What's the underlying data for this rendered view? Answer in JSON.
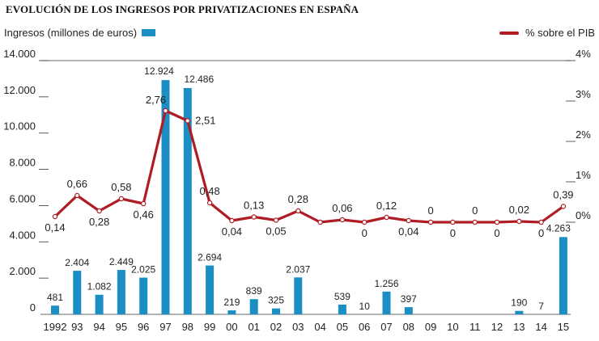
{
  "chart_data": {
    "type": "bar+line",
    "title": "EVOLUCIÓN DE LOS INGRESOS POR PRIVATIZACIONES EN ESPAÑA",
    "categories": [
      "1992",
      "93",
      "94",
      "95",
      "96",
      "97",
      "98",
      "99",
      "00",
      "01",
      "02",
      "03",
      "04",
      "05",
      "06",
      "07",
      "08",
      "09",
      "10",
      "11",
      "12",
      "13",
      "14",
      "15"
    ],
    "bar_series": {
      "name": "Ingresos (millones de euros)",
      "values": [
        481,
        2404,
        1082,
        2449,
        2025,
        12924,
        12486,
        2694,
        219,
        839,
        325,
        2037,
        0,
        539,
        10,
        1256,
        397,
        0,
        0,
        0,
        0,
        190,
        7,
        4263
      ],
      "labels": [
        "481",
        "2.404",
        "1.082",
        "2.449",
        "2.025",
        "12.924",
        "12.486",
        "2.694",
        "219",
        "839",
        "325",
        "2.037",
        "",
        "539",
        "10",
        "1.256",
        "397",
        "",
        "",
        "",
        "",
        "190",
        "7",
        "4.263"
      ],
      "color": "#1b8ec4"
    },
    "line_series": {
      "name": "% sobre el PIB",
      "values": [
        0.14,
        0.66,
        0.28,
        0.58,
        0.46,
        2.76,
        2.51,
        0.48,
        0.04,
        0.13,
        0.05,
        0.28,
        0.0,
        0.06,
        0.0,
        0.12,
        0.04,
        0.0,
        0.0,
        0.0,
        0.0,
        0.02,
        0.0,
        0.39
      ],
      "labels": [
        "0,14",
        "0,66",
        "0,28",
        "0,58",
        "0,46",
        "2,76",
        "2,51",
        "0,48",
        "0,04",
        "0,13",
        "0,05",
        "0,28",
        "",
        "0,06",
        "0",
        "0,12",
        "0,04",
        "0",
        "0",
        "0",
        "0",
        "0,02",
        "0",
        "0,39"
      ],
      "color": "#b01c24"
    },
    "y_left": {
      "ticks": [
        "0",
        "2.000",
        "4.000",
        "6.000",
        "8.000",
        "10.000",
        "12.000",
        "14.000"
      ],
      "lim": [
        0,
        14000
      ]
    },
    "y_right": {
      "ticks": [
        "0%",
        "1%",
        "2%",
        "3%",
        "4%"
      ],
      "lim": [
        -0.3,
        4.0
      ]
    },
    "grid": false,
    "legend": "top"
  }
}
